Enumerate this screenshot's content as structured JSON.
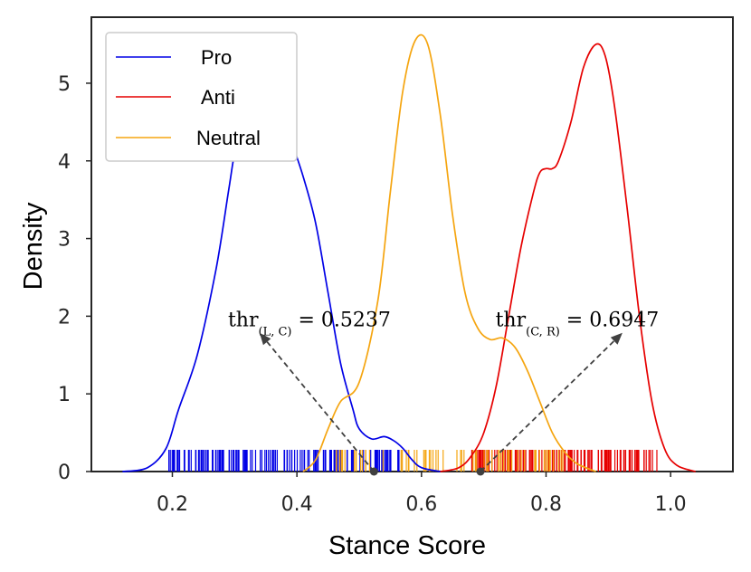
{
  "chart_data": {
    "type": "kde_density",
    "xlabel": "Stance Score",
    "ylabel": "Density",
    "xlim": [
      0.07,
      1.1
    ],
    "ylim": [
      0,
      5.85
    ],
    "xticks": [
      {
        "value": 0.2,
        "label": "0.2"
      },
      {
        "value": 0.4,
        "label": "0.4"
      },
      {
        "value": 0.6,
        "label": "0.6"
      },
      {
        "value": 0.8,
        "label": "0.8"
      },
      {
        "value": 1.0,
        "label": "1.0"
      }
    ],
    "yticks": [
      {
        "value": 0,
        "label": "0"
      },
      {
        "value": 1,
        "label": "1"
      },
      {
        "value": 2,
        "label": "2"
      },
      {
        "value": 3,
        "label": "3"
      },
      {
        "value": 4,
        "label": "4"
      },
      {
        "value": 5,
        "label": "5"
      }
    ],
    "legend_position": "upper-left",
    "series": [
      {
        "name": "Pro",
        "color": "#0000e6",
        "points": [
          [
            0.12,
            0.0
          ],
          [
            0.16,
            0.05
          ],
          [
            0.19,
            0.3
          ],
          [
            0.21,
            0.8
          ],
          [
            0.24,
            1.5
          ],
          [
            0.27,
            2.6
          ],
          [
            0.29,
            3.6
          ],
          [
            0.3,
            4.1
          ],
          [
            0.31,
            4.35
          ],
          [
            0.33,
            4.45
          ],
          [
            0.35,
            4.5
          ],
          [
            0.37,
            4.6
          ],
          [
            0.38,
            4.7
          ],
          [
            0.39,
            4.3
          ],
          [
            0.41,
            3.8
          ],
          [
            0.43,
            3.2
          ],
          [
            0.45,
            2.3
          ],
          [
            0.47,
            1.4
          ],
          [
            0.49,
            0.8
          ],
          [
            0.5,
            0.55
          ],
          [
            0.52,
            0.42
          ],
          [
            0.54,
            0.45
          ],
          [
            0.555,
            0.4
          ],
          [
            0.57,
            0.3
          ],
          [
            0.585,
            0.15
          ],
          [
            0.6,
            0.05
          ],
          [
            0.63,
            0.0
          ]
        ],
        "rug": {
          "min": 0.19,
          "max": 0.57
        }
      },
      {
        "name": "Anti",
        "color": "#e60000",
        "points": [
          [
            0.63,
            0.0
          ],
          [
            0.66,
            0.05
          ],
          [
            0.68,
            0.2
          ],
          [
            0.7,
            0.5
          ],
          [
            0.72,
            1.1
          ],
          [
            0.74,
            2.0
          ],
          [
            0.76,
            2.9
          ],
          [
            0.78,
            3.6
          ],
          [
            0.79,
            3.85
          ],
          [
            0.8,
            3.9
          ],
          [
            0.81,
            3.9
          ],
          [
            0.82,
            4.0
          ],
          [
            0.84,
            4.5
          ],
          [
            0.86,
            5.2
          ],
          [
            0.88,
            5.5
          ],
          [
            0.895,
            5.35
          ],
          [
            0.91,
            4.7
          ],
          [
            0.93,
            3.4
          ],
          [
            0.95,
            2.0
          ],
          [
            0.97,
            0.9
          ],
          [
            0.99,
            0.3
          ],
          [
            1.01,
            0.08
          ],
          [
            1.04,
            0.0
          ]
        ],
        "rug": {
          "min": 0.68,
          "max": 0.98
        }
      },
      {
        "name": "Neutral",
        "color": "#f5a510",
        "points": [
          [
            0.41,
            0.0
          ],
          [
            0.43,
            0.15
          ],
          [
            0.45,
            0.55
          ],
          [
            0.47,
            0.9
          ],
          [
            0.5,
            1.15
          ],
          [
            0.53,
            2.2
          ],
          [
            0.55,
            3.6
          ],
          [
            0.57,
            4.9
          ],
          [
            0.59,
            5.55
          ],
          [
            0.61,
            5.5
          ],
          [
            0.63,
            4.6
          ],
          [
            0.65,
            3.3
          ],
          [
            0.67,
            2.3
          ],
          [
            0.69,
            1.85
          ],
          [
            0.71,
            1.7
          ],
          [
            0.73,
            1.72
          ],
          [
            0.75,
            1.6
          ],
          [
            0.77,
            1.3
          ],
          [
            0.79,
            0.9
          ],
          [
            0.81,
            0.5
          ],
          [
            0.83,
            0.25
          ],
          [
            0.85,
            0.1
          ],
          [
            0.88,
            0.0
          ]
        ],
        "rug": {
          "min": 0.45,
          "max": 0.83
        }
      }
    ],
    "annotations": [
      {
        "id": "lc",
        "text_main": "thr",
        "text_sub": "(L, C)",
        "text_value": " = 0.5237",
        "point": [
          0.5237,
          0.0
        ],
        "text_xy": [
          0.42,
          1.95
        ]
      },
      {
        "id": "cr",
        "text_main": "thr",
        "text_sub": "(C, R)",
        "text_value": " = 0.6947",
        "point": [
          0.6947,
          0.0
        ],
        "text_xy": [
          0.85,
          1.95
        ]
      }
    ]
  }
}
